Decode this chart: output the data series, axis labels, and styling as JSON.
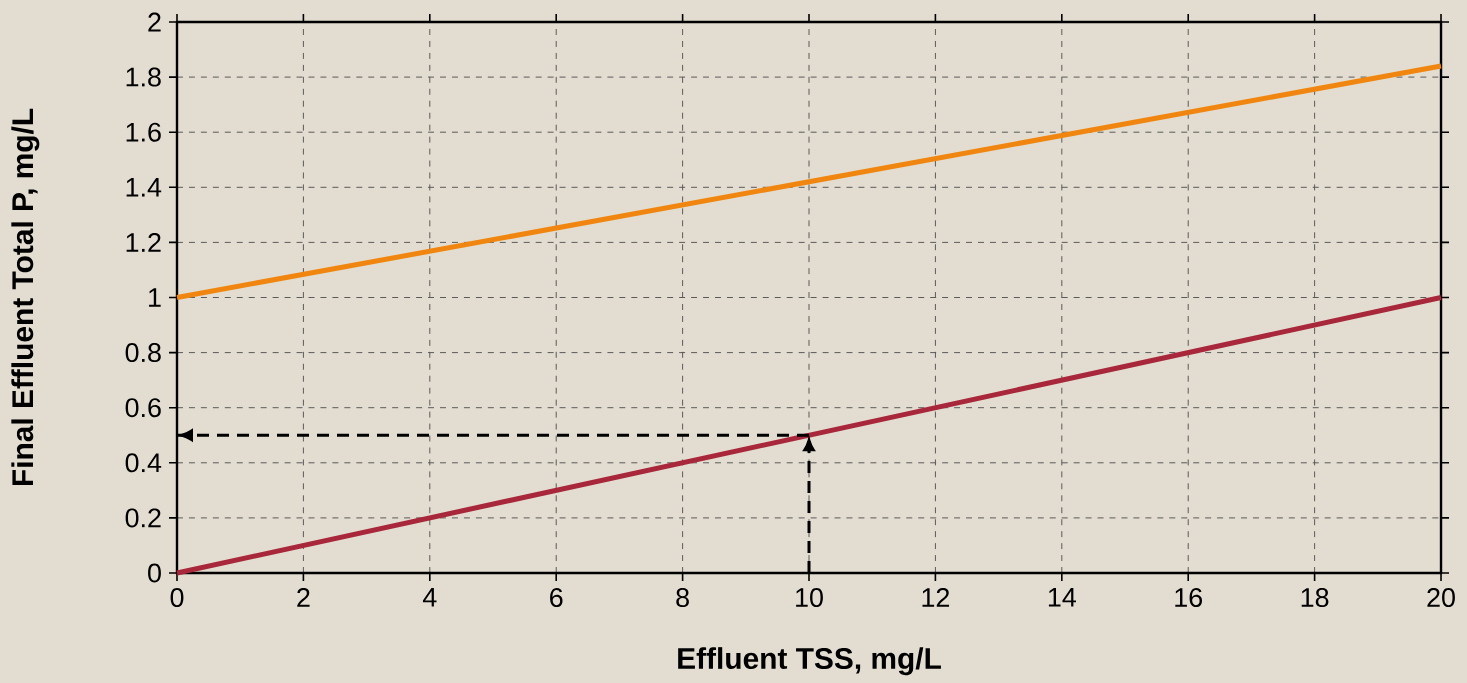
{
  "chart_data": {
    "type": "line",
    "xlabel": "Effluent TSS, mg/L",
    "ylabel": "Final Effluent  Total P, mg/L",
    "series": [
      {
        "color": "#f0860f",
        "x": [
          0,
          20
        ],
        "values": [
          1,
          1.84
        ]
      },
      {
        "color": "#a8273a",
        "x": [
          0,
          20
        ],
        "values": [
          0,
          1
        ]
      },
      {
        "color": "#000000",
        "x": [
          10,
          10
        ],
        "values": [
          0,
          0.5
        ],
        "line_style": "dashed"
      },
      {
        "color": "#000000",
        "x": [
          10,
          0
        ],
        "values": [
          0.5,
          0.5
        ],
        "line_style": "dashed"
      }
    ],
    "xlim": [
      0,
      20
    ],
    "xticks": [
      0,
      2,
      4,
      6,
      8,
      10,
      12,
      14,
      16,
      18,
      20
    ],
    "ylim": [
      0,
      2
    ],
    "yticks": [
      0,
      0.2,
      0.4,
      0.6,
      0.8,
      1,
      1.2,
      1.4,
      1.6,
      1.8,
      2
    ],
    "grid": true
  }
}
